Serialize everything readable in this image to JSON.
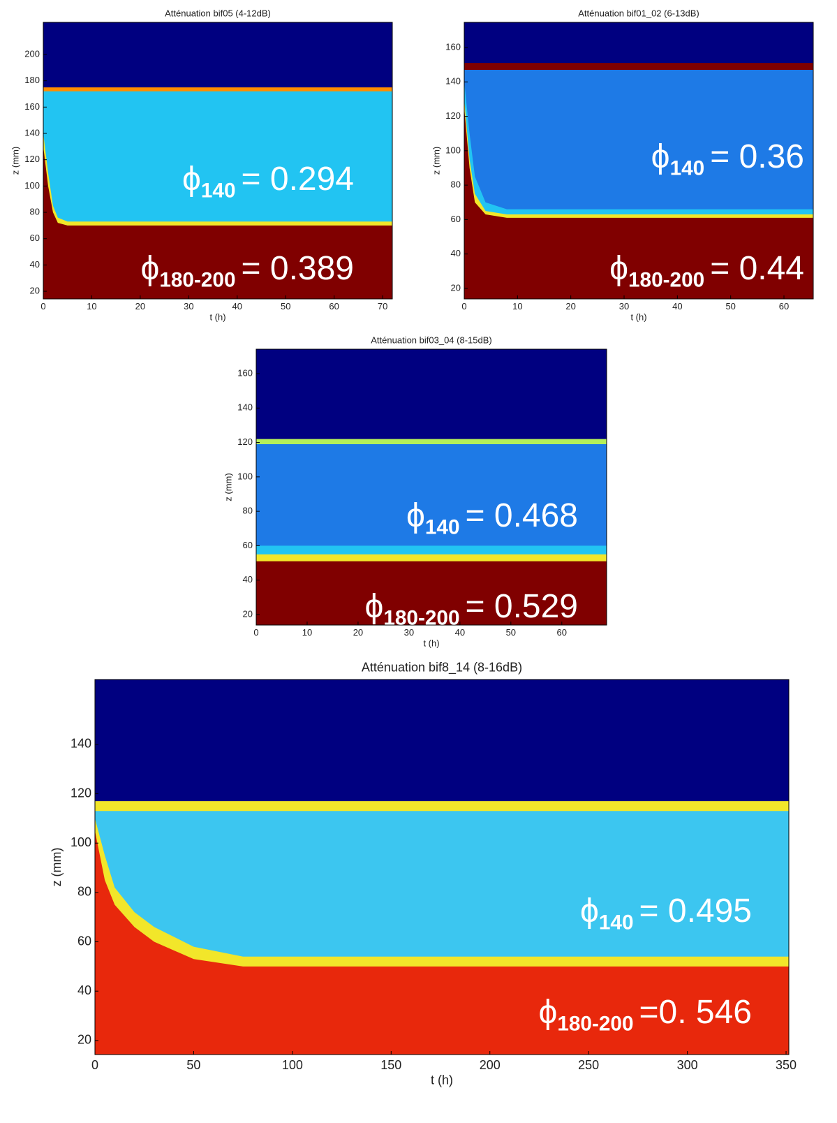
{
  "chart_data": [
    {
      "type": "heatmap",
      "title": "Atténuation bif05 (4-12dB)",
      "xlabel": "t (h)",
      "ylabel": "z (mm)",
      "xlim": [
        0,
        72
      ],
      "ylim": [
        14.2,
        224.4
      ],
      "xticks": [
        0,
        10,
        20,
        30,
        40,
        50,
        60,
        70
      ],
      "yticks": [
        20,
        40,
        60,
        80,
        100,
        120,
        140,
        160,
        180,
        200
      ],
      "x": [
        0,
        1,
        2,
        3,
        5,
        72
      ],
      "series": [
        {
          "color": "#000080",
          "values": [
            224.4,
            224.4,
            224.4,
            224.4,
            224.4,
            224.4
          ]
        },
        {
          "color": "#ff8c00",
          "values": [
            175,
            175,
            175,
            175,
            175,
            175
          ]
        },
        {
          "color": "#22c4f2",
          "values": [
            172,
            172,
            172,
            172,
            172,
            172
          ]
        },
        {
          "color": "#f2e62a",
          "values": [
            140,
            110,
            85,
            76,
            73,
            73
          ]
        },
        {
          "color": "#800000",
          "values": [
            130,
            100,
            80,
            72,
            70,
            70
          ]
        }
      ],
      "annotations": [
        {
          "symbol": "ϕ",
          "subscript": "140",
          "text": "= 0.294"
        },
        {
          "symbol": "ϕ",
          "subscript": "180-200",
          "text": "= 0.389"
        }
      ]
    },
    {
      "type": "heatmap",
      "title": "Atténuation bif01_02 (6-13dB)",
      "xlabel": "t (h)",
      "ylabel": "z (mm)",
      "xlim": [
        0,
        65.5
      ],
      "ylim": [
        13.9,
        174.6
      ],
      "xticks": [
        0,
        10,
        20,
        30,
        40,
        50,
        60
      ],
      "yticks": [
        20,
        40,
        60,
        80,
        100,
        120,
        140,
        160
      ],
      "x": [
        0,
        1,
        2,
        4,
        8,
        65.5
      ],
      "series": [
        {
          "color": "#000080",
          "values": [
            174.6,
            174.6,
            174.6,
            174.6,
            174.6,
            174.6
          ]
        },
        {
          "color": "#800000",
          "values": [
            151,
            151,
            151,
            151,
            151,
            151
          ]
        },
        {
          "color": "#1e7ae6",
          "values": [
            147,
            147,
            147,
            147,
            147,
            147
          ]
        },
        {
          "color": "#22c4f2",
          "values": [
            140,
            110,
            85,
            70,
            66,
            66
          ]
        },
        {
          "color": "#f2e62a",
          "values": [
            130,
            95,
            75,
            65,
            63,
            63
          ]
        },
        {
          "color": "#800000",
          "values": [
            125,
            90,
            70,
            63,
            61,
            61
          ]
        }
      ],
      "annotations": [
        {
          "symbol": "ϕ",
          "subscript": "140",
          "text": "= 0.36"
        },
        {
          "symbol": "ϕ",
          "subscript": "180-200",
          "text": "= 0.44"
        }
      ]
    },
    {
      "type": "heatmap",
      "title": "Atténuation bif03_04 (8-15dB)",
      "xlabel": "t (h)",
      "ylabel": "z (mm)",
      "xlim": [
        0,
        68.8
      ],
      "ylim": [
        13.9,
        174.2
      ],
      "xticks": [
        0,
        10,
        20,
        30,
        40,
        50,
        60
      ],
      "yticks": [
        20,
        40,
        60,
        80,
        100,
        120,
        140,
        160
      ],
      "x": [
        0,
        68.8
      ],
      "series": [
        {
          "color": "#000080",
          "values": [
            174.2,
            174.2
          ]
        },
        {
          "color": "#b4f05a",
          "values": [
            122,
            122
          ]
        },
        {
          "color": "#1e7ae6",
          "values": [
            119,
            119
          ]
        },
        {
          "color": "#22c4f2",
          "values": [
            60,
            60
          ]
        },
        {
          "color": "#f2e62a",
          "values": [
            55,
            55
          ]
        },
        {
          "color": "#800000",
          "values": [
            51,
            51
          ]
        }
      ],
      "annotations": [
        {
          "symbol": "ϕ",
          "subscript": "140",
          "text": "= 0.468"
        },
        {
          "symbol": "ϕ",
          "subscript": "180-200",
          "text": "= 0.529"
        }
      ]
    },
    {
      "type": "heatmap",
      "title": "Atténuation bif8_14 (8-16dB)",
      "xlabel": "t (h)",
      "ylabel": "z (mm)",
      "xlim": [
        0,
        351.4
      ],
      "ylim": [
        14.3,
        166.3
      ],
      "xticks": [
        0,
        50,
        100,
        150,
        200,
        250,
        300,
        350
      ],
      "yticks": [
        20,
        40,
        60,
        80,
        100,
        120,
        140
      ],
      "x": [
        0,
        5,
        10,
        20,
        30,
        50,
        75,
        351.4
      ],
      "series": [
        {
          "color": "#000080",
          "values": [
            166.3,
            166.3,
            166.3,
            166.3,
            166.3,
            166.3,
            166.3,
            166.3
          ]
        },
        {
          "color": "#f2e62a",
          "values": [
            117,
            117,
            117,
            117,
            117,
            117,
            117,
            117
          ]
        },
        {
          "color": "#3cc6f0",
          "values": [
            113,
            113,
            113,
            113,
            113,
            113,
            113,
            113
          ]
        },
        {
          "color": "#f2e62a",
          "values": [
            110,
            95,
            82,
            72,
            66,
            58,
            54,
            54
          ]
        },
        {
          "color": "#e8280c",
          "values": [
            105,
            85,
            75,
            66,
            60,
            53,
            50,
            50
          ]
        }
      ],
      "annotations": [
        {
          "symbol": "ϕ",
          "subscript": "140",
          "text": "= 0.495"
        },
        {
          "symbol": "ϕ",
          "subscript": "180-200",
          "text": "=0. 546"
        }
      ]
    }
  ]
}
